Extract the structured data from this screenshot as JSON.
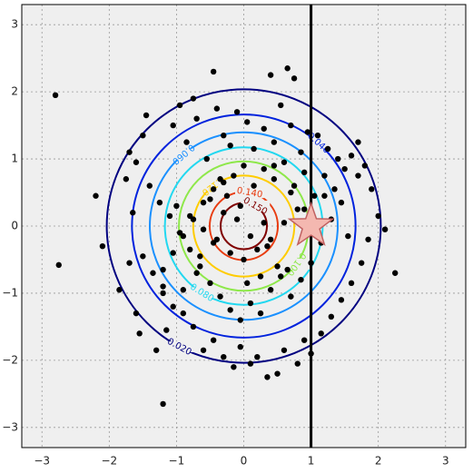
{
  "chart_data": {
    "type": "scatter",
    "xlim": [
      -3.3,
      3.3
    ],
    "ylim": [
      -3.3,
      3.3
    ],
    "xticks": [
      {
        "value": -3,
        "label": "−3"
      },
      {
        "value": -2,
        "label": "−2"
      },
      {
        "value": -1,
        "label": "−1"
      },
      0,
      1,
      2,
      3
    ],
    "yticks": [
      {
        "value": -3,
        "label": "−3"
      },
      {
        "value": -2,
        "label": "−2"
      },
      {
        "value": -1,
        "label": "−1"
      },
      0,
      1,
      2,
      3
    ],
    "grid": true,
    "point_color": "#000000",
    "x": [
      -2.8,
      -2.75,
      -1.2,
      2.25,
      0.65,
      -0.45,
      0.4,
      0.75,
      -0.75,
      -1.5,
      -1.45,
      -1.7,
      -2.2,
      -2.1,
      -1.85,
      -1.6,
      -1.55,
      -1.3,
      -1.15,
      -1.05,
      -0.95,
      -0.85,
      -0.7,
      -0.55,
      -0.4,
      -0.3,
      -0.2,
      -0.1,
      0.05,
      0.15,
      0.3,
      0.45,
      0.55,
      0.7,
      0.85,
      0.95,
      1.1,
      1.25,
      1.4,
      1.5,
      1.6,
      1.7,
      1.8,
      1.9,
      2.0,
      2.1,
      1.85,
      1.75,
      1.6,
      1.45,
      1.3,
      1.15,
      1.0,
      0.9,
      0.8,
      0.6,
      0.5,
      0.35,
      0.2,
      0.1,
      -0.05,
      -0.15,
      -0.3,
      -0.45,
      -0.6,
      -0.75,
      -0.9,
      -1.05,
      -1.2,
      -1.35,
      -1.5,
      -1.65,
      -1.75,
      -1.6,
      -1.4,
      -1.25,
      -1.1,
      -0.95,
      -0.8,
      -0.65,
      -0.5,
      -0.35,
      -0.2,
      -0.05,
      0.1,
      0.25,
      0.4,
      0.55,
      0.7,
      0.85,
      1.0,
      1.15,
      1.3,
      1.45,
      1.55,
      1.35,
      1.2,
      1.05,
      0.9,
      0.75,
      0.6,
      0.45,
      0.3,
      0.15,
      0.0,
      -0.15,
      -0.3,
      -0.45,
      -0.6,
      -0.75,
      -0.9,
      -1.05,
      -1.2,
      -1.0,
      -0.8,
      -0.6,
      -0.4,
      -0.2,
      0.0,
      0.2,
      0.4,
      0.6,
      0.8,
      -0.5,
      -0.3,
      -0.1,
      0.1,
      0.3,
      0.5,
      -0.7,
      0.7,
      -0.25,
      0.25,
      0.05,
      -0.05,
      0.35,
      -0.35,
      0.65,
      -0.65,
      1.2,
      -1.2,
      0.9,
      -0.9,
      1.7,
      -1.7,
      0.45,
      -0.45
    ],
    "y": [
      1.95,
      -0.58,
      -2.65,
      -0.7,
      2.35,
      2.3,
      2.25,
      2.2,
      1.9,
      1.35,
      1.65,
      1.1,
      0.45,
      -0.3,
      -0.95,
      -1.3,
      -1.6,
      -1.85,
      -1.55,
      1.5,
      1.8,
      1.25,
      1.6,
      1.0,
      1.75,
      1.35,
      1.2,
      1.7,
      1.55,
      1.15,
      1.45,
      1.25,
      1.8,
      1.5,
      1.1,
      1.4,
      1.35,
      1.15,
      1.0,
      0.85,
      1.05,
      0.75,
      0.9,
      0.55,
      0.15,
      -0.05,
      -0.2,
      -0.55,
      -0.85,
      -1.1,
      -1.35,
      -1.6,
      -1.9,
      -1.7,
      -2.05,
      -1.85,
      -2.2,
      -2.25,
      -1.95,
      -2.05,
      -1.8,
      -2.1,
      -1.95,
      -1.7,
      -1.85,
      -1.5,
      -1.3,
      -1.2,
      -1.0,
      -0.7,
      -0.45,
      0.2,
      0.7,
      0.95,
      0.6,
      0.35,
      0.15,
      -0.1,
      -0.35,
      -0.6,
      -0.85,
      -1.05,
      -1.25,
      -1.4,
      -1.15,
      -1.3,
      -0.95,
      -0.75,
      -1.05,
      -0.8,
      -0.55,
      -0.25,
      0.1,
      0.35,
      -0.15,
      0.55,
      0.75,
      0.45,
      0.8,
      0.6,
      0.95,
      0.7,
      0.85,
      0.6,
      0.9,
      0.75,
      0.65,
      0.55,
      0.35,
      0.1,
      -0.15,
      -0.4,
      -0.65,
      0.3,
      0.15,
      -0.05,
      -0.2,
      -0.4,
      -0.5,
      -0.35,
      -0.2,
      0.05,
      0.25,
      0.4,
      0.2,
      0.1,
      -0.15,
      0.05,
      -0.6,
      -0.7,
      0.5,
      0.45,
      -0.75,
      -0.85,
      0.3,
      -0.3,
      0.7,
      -0.65,
      -0.45,
      0.45,
      -0.9,
      0.25,
      -0.95,
      1.25,
      -0.55,
      0.9,
      -0.25
    ],
    "contours": [
      {
        "value": 0.02,
        "label": "0.020",
        "color": "#000080"
      },
      {
        "value": 0.04,
        "label": "0.040",
        "color": "#0022dd"
      },
      {
        "value": 0.06,
        "label": "0.060",
        "color": "#1a90ff"
      },
      {
        "value": 0.08,
        "label": "0.080",
        "color": "#22d8f0"
      },
      {
        "value": 0.1,
        "label": "0.100",
        "color": "#8ee84a"
      },
      {
        "value": 0.12,
        "label": "0.120",
        "color": "#ffcc00"
      },
      {
        "value": 0.14,
        "label": "0.140",
        "color": "#e83c10"
      },
      {
        "value": 0.15,
        "label": "0.150",
        "color": "#800000"
      }
    ],
    "vline": {
      "x": 1,
      "color": "#000000"
    },
    "star": {
      "x": 1,
      "y": 0,
      "color": "#f4b8b0",
      "edge": "#c06060"
    }
  }
}
